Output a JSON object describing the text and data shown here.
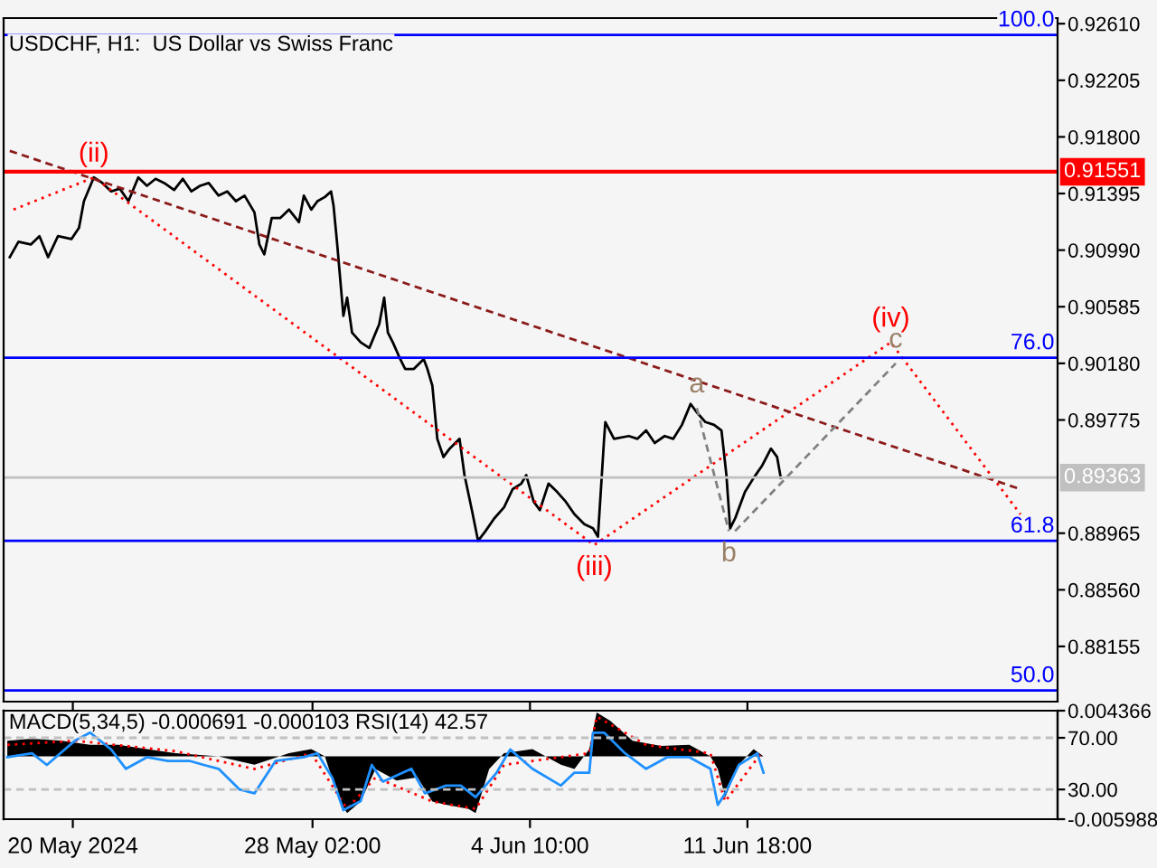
{
  "chart_data": [
    {
      "type": "line",
      "title": "USDCHF, H1:  US Dollar vs Swiss Franc",
      "xlim": [
        "2024-05-17T16:00",
        "2024-06-22T05:00"
      ],
      "xticks": [
        {
          "value": "2024-05-20",
          "label": null
        },
        {
          "value": "2024-05-28T02:00",
          "label": null
        },
        {
          "value": "2024-06-04T10:00",
          "label": null
        },
        {
          "value": "2024-06-11T18:00",
          "label": null
        }
      ],
      "ylim": [
        0.8776,
        0.9265
      ],
      "yticks": [
        {
          "value": 0.9261,
          "label": "0.92610"
        },
        {
          "value": 0.92205,
          "label": "0.92205"
        },
        {
          "value": 0.918,
          "label": "0.91800"
        },
        {
          "value": 0.91395,
          "label": "0.91395"
        },
        {
          "value": 0.9099,
          "label": "0.90990"
        },
        {
          "value": 0.90585,
          "label": "0.90585"
        },
        {
          "value": 0.9018,
          "label": "0.90180"
        },
        {
          "value": 0.89775,
          "label": "0.89775"
        },
        {
          "value": 0.88965,
          "label": "0.88965"
        },
        {
          "value": 0.8856,
          "label": "0.88560"
        },
        {
          "value": 0.88155,
          "label": "0.88155"
        }
      ],
      "tick_labels": "y",
      "grid": false,
      "series": [
        {
          "color": "#000000",
          "line_style": "solid",
          "x": [
            "2024-05-17T21:00",
            "2024-05-18T04:00",
            "2024-05-18T14:00",
            "2024-05-18T21:00",
            "2024-05-19T04:00",
            "2024-05-19T12:00",
            "2024-05-19T23:00",
            "2024-05-20T05:00",
            "2024-05-20T09:00",
            "2024-05-20T17:00",
            "2024-05-21T00:00",
            "2024-05-21T07:00",
            "2024-05-21T14:00",
            "2024-05-21T21:00",
            "2024-05-22T05:00",
            "2024-05-22T12:00",
            "2024-05-22T19:00",
            "2024-05-23T02:00",
            "2024-05-23T10:00",
            "2024-05-23T17:00",
            "2024-05-24T00:00",
            "2024-05-24T07:00",
            "2024-05-24T14:00",
            "2024-05-24T22:00",
            "2024-05-25T05:00",
            "2024-05-25T12:00",
            "2024-05-25T19:00",
            "2024-05-26T03:00",
            "2024-05-26T07:00",
            "2024-05-26T11:00",
            "2024-05-26T17:00",
            "2024-05-27T00:00",
            "2024-05-27T07:00",
            "2024-05-27T15:00",
            "2024-05-27T19:00",
            "2024-05-28T01:00",
            "2024-05-28T06:00",
            "2024-05-28T12:00",
            "2024-05-28T17:00",
            "2024-05-28T19:00",
            "2024-05-28T22:00",
            "2024-05-29T03:00",
            "2024-05-29T06:00",
            "2024-05-29T10:00",
            "2024-05-29T17:00",
            "2024-05-30T00:00",
            "2024-05-30T08:00",
            "2024-05-30T12:00",
            "2024-05-30T15:00",
            "2024-05-30T19:00",
            "2024-05-31T01:00",
            "2024-05-31T05:00",
            "2024-05-31T12:00",
            "2024-05-31T20:00",
            "2024-05-31T23:00",
            "2024-06-01T03:00",
            "2024-06-01T07:00",
            "2024-06-01T12:00",
            "2024-06-01T17:00",
            "2024-06-02T01:00",
            "2024-06-02T05:00",
            "2024-06-02T11:00",
            "2024-06-02T16:00",
            "2024-06-02T22:00",
            "2024-06-03T05:00",
            "2024-06-03T13:00",
            "2024-06-03T20:00",
            "2024-06-04T03:00",
            "2024-06-04T07:00",
            "2024-06-04T13:00",
            "2024-06-04T18:00",
            "2024-06-05T01:00",
            "2024-06-05T08:00",
            "2024-06-05T15:00",
            "2024-06-05T22:00",
            "2024-06-06T06:00",
            "2024-06-06T13:00",
            "2024-06-06T17:00",
            "2024-06-06T22:00",
            "2024-06-06T23:00",
            "2024-06-07T06:00",
            "2024-06-07T18:00",
            "2024-06-08T01:00",
            "2024-06-08T08:00",
            "2024-06-08T15:00",
            "2024-06-08T23:00",
            "2024-06-09T06:00",
            "2024-06-09T13:00",
            "2024-06-09T20:00",
            "2024-06-10T01:00",
            "2024-06-10T08:00",
            "2024-06-10T15:00",
            "2024-06-10T21:00",
            "2024-06-11T01:00",
            "2024-06-11T04:00",
            "2024-06-11T08:00",
            "2024-06-11T16:00",
            "2024-06-11T23:00",
            "2024-06-12T06:00",
            "2024-06-12T13:00",
            "2024-06-12T18:00",
            "2024-06-12T21:00"
          ],
          "values": [
            0.9094,
            0.9105,
            0.9103,
            0.9109,
            0.9094,
            0.9109,
            0.9107,
            0.9115,
            0.9134,
            0.9151,
            0.9147,
            0.9141,
            0.9143,
            0.9134,
            0.9151,
            0.9145,
            0.915,
            0.9147,
            0.9142,
            0.915,
            0.9141,
            0.9145,
            0.9147,
            0.9138,
            0.9141,
            0.9134,
            0.9138,
            0.9126,
            0.9103,
            0.9096,
            0.9122,
            0.9122,
            0.9128,
            0.9119,
            0.9138,
            0.9128,
            0.9134,
            0.9137,
            0.9141,
            0.9131,
            0.9103,
            0.9052,
            0.9065,
            0.904,
            0.9033,
            0.9029,
            0.9046,
            0.9065,
            0.904,
            0.9033,
            0.9021,
            0.9014,
            0.9014,
            0.9021,
            0.9014,
            0.9002,
            0.8964,
            0.8951,
            0.8957,
            0.8964,
            0.8938,
            0.8913,
            0.8891,
            0.8898,
            0.8907,
            0.8915,
            0.8928,
            0.8932,
            0.8938,
            0.8919,
            0.8913,
            0.8932,
            0.8926,
            0.8919,
            0.891,
            0.8903,
            0.89,
            0.8894,
            0.8964,
            0.8976,
            0.8964,
            0.8966,
            0.8964,
            0.897,
            0.8961,
            0.8966,
            0.8964,
            0.8974,
            0.8989,
            0.8983,
            0.8976,
            0.8974,
            0.897,
            0.8938,
            0.89,
            0.8907,
            0.8926,
            0.8936,
            0.8945,
            0.8957,
            0.8951,
            0.8936
          ]
        },
        {
          "color": "#ff0000",
          "line_style": "dotted",
          "x": [
            "2024-05-18T00:00",
            "2024-05-20T17:00",
            "2024-06-06T14:00",
            "2024-06-16T14:00",
            "2024-06-20T23:00"
          ],
          "values": [
            0.9128,
            0.9151,
            0.8888,
            0.9033,
            0.891
          ]
        },
        {
          "color": "#8b1a1a",
          "line_style": "dashed",
          "x": [
            "2024-05-17T21:00",
            "2024-06-20T23:00"
          ],
          "values": [
            0.917,
            0.8928
          ]
        },
        {
          "color": "#808080",
          "line_style": "dashed",
          "x": [
            "2024-06-10T01:00",
            "2024-06-11T03:00"
          ],
          "values": [
            0.8986,
            0.8898
          ]
        },
        {
          "color": "#808080",
          "line_style": "dashed",
          "x": [
            "2024-06-11T08:00",
            "2024-06-16T18:00"
          ],
          "values": [
            0.8898,
            0.9018
          ]
        }
      ],
      "ref_lines": [
        {
          "axis": "y",
          "value": 0.91551,
          "label": "0.91551",
          "color": "#ff0000"
        },
        {
          "axis": "y",
          "value": 0.89363,
          "label": "0.89363",
          "color": "#c0c0c0"
        },
        {
          "axis": "y",
          "value": 0.9253,
          "color": "#0000ff"
        },
        {
          "axis": "y",
          "value": 0.9022,
          "color": "#0000ff"
        },
        {
          "axis": "y",
          "value": 0.8891,
          "color": "#0000ff"
        },
        {
          "axis": "y",
          "value": 0.8784,
          "color": "#0000ff"
        }
      ],
      "annotations": [
        {
          "text": "(ii)",
          "x": "2024-05-20T17:00",
          "y": 0.9151
        },
        {
          "text": "(iii)",
          "x": "2024-06-06T14:00",
          "y": 0.8888
        },
        {
          "text": "(iv)",
          "x": "2024-06-16T14:00",
          "y": 0.9033
        },
        {
          "text": "a",
          "x": "2024-06-10T01:00",
          "y": 0.8986
        },
        {
          "text": "b",
          "x": "2024-06-11T03:00",
          "y": 0.8898
        },
        {
          "text": "c",
          "x": "2024-06-16T18:00",
          "y": 0.9018
        },
        "100.0",
        "76.0",
        "61.8",
        "50.0"
      ]
    },
    {
      "type": "area",
      "title": "MACD(5,34,5) -0.000691 -0.000103 RSI(14) 42.57",
      "xlim": [
        "2024-05-17T16:00",
        "2024-06-22T05:00"
      ],
      "xticks": [
        {
          "value": "2024-05-20",
          "label": "20 May 2024"
        },
        {
          "value": "2024-05-28T02:00",
          "label": "28 May 02:00"
        },
        {
          "value": "2024-06-04T10:00",
          "label": "4 Jun 10:00"
        },
        {
          "value": "2024-06-11T18:00",
          "label": "11 Jun 18:00"
        }
      ],
      "ylim": [
        -0.005988,
        0.004366
      ],
      "yticks": [
        0.004366,
        -0.005988
      ],
      "y2lim": [
        7,
        91
      ],
      "y2ticks": [
        {
          "value": 70,
          "label": "70.00"
        },
        {
          "value": 30,
          "label": "30.00"
        }
      ],
      "grid": false,
      "series": [
        {
          "type": "area",
          "color": "#000000",
          "x": [
            "2024-05-17T19:00",
            "2024-05-18T15:00",
            "2024-05-19T15:00",
            "2024-05-20T14:00",
            "2024-05-21T13:00",
            "2024-05-22T12:00",
            "2024-05-23T11:00",
            "2024-05-24T22:00",
            "2024-05-26T03:00",
            "2024-05-27T07:00",
            "2024-05-28T01:00",
            "2024-05-28T12:00",
            "2024-05-29T00:00",
            "2024-05-29T06:00",
            "2024-05-29T17:00",
            "2024-05-30T05:00",
            "2024-05-30T22:00",
            "2024-05-31T15:00",
            "2024-06-01T03:00",
            "2024-06-01T14:00",
            "2024-06-02T08:00",
            "2024-06-02T14:00",
            "2024-06-03T01:00",
            "2024-06-03T13:00",
            "2024-06-04T12:00",
            "2024-06-05T11:00",
            "2024-06-05T22:00",
            "2024-06-06T10:00",
            "2024-06-06T16:00",
            "2024-06-07T03:00",
            "2024-06-07T21:00",
            "2024-06-08T20:00",
            "2024-06-09T19:00",
            "2024-06-10T12:00",
            "2024-06-10T18:00",
            "2024-06-11T00:00",
            "2024-06-11T11:00",
            "2024-06-11T23:00",
            "2024-06-12T07:00"
          ],
          "values": [
            0.0015,
            0.0017,
            0.0015,
            0.0011,
            0.0011,
            0.0007,
            0.0003,
            0.0,
            -0.0008,
            0.0003,
            0.0007,
            0.0,
            -0.0043,
            -0.0054,
            -0.0043,
            -0.0012,
            -0.0023,
            -0.002,
            -0.0043,
            -0.0046,
            -0.005,
            -0.0054,
            -0.0012,
            0.0003,
            0.0007,
            -0.0008,
            -0.0012,
            0.0007,
            0.0042,
            0.0034,
            0.0015,
            0.001,
            0.0011,
            0.0,
            -0.0012,
            -0.0039,
            -0.0008,
            0.0007,
            0.0
          ]
        },
        {
          "type": "line",
          "color": "#ff0000",
          "line_style": "dotted",
          "x": [
            "2024-05-17T19:00",
            "2024-05-20T02:00",
            "2024-05-23T11:00",
            "2024-05-26T03:00",
            "2024-05-28T01:00",
            "2024-05-29T06:00",
            "2024-05-30T05:00",
            "2024-06-01T03:00",
            "2024-06-02T14:00",
            "2024-06-03T13:00",
            "2024-06-06T10:00",
            "2024-06-06T16:00",
            "2024-06-08T08:00",
            "2024-06-10T12:00",
            "2024-06-11T00:00",
            "2024-06-12T05:00"
          ],
          "values": [
            0.0011,
            0.0015,
            0.0005,
            -0.0012,
            0.0003,
            -0.005,
            -0.002,
            -0.0043,
            -0.005,
            -0.0008,
            0.0003,
            0.0038,
            0.0011,
            0.0003,
            -0.0043,
            0.0003
          ]
        },
        {
          "type": "line",
          "axis": "y2",
          "color": "#1e90ff",
          "line_style": "solid",
          "x": [
            "2024-05-17T19:00",
            "2024-05-18T15:00",
            "2024-05-19T03:00",
            "2024-05-20T02:00",
            "2024-05-20T14:00",
            "2024-05-21T07:00",
            "2024-05-21T19:00",
            "2024-05-22T12:00",
            "2024-05-23T05:00",
            "2024-05-23T23:00",
            "2024-05-24T10:00",
            "2024-05-24T22:00",
            "2024-05-25T15:00",
            "2024-05-26T03:00",
            "2024-05-26T20:00",
            "2024-05-27T19:00",
            "2024-05-28T06:00",
            "2024-05-28T18:00",
            "2024-05-29T03:00",
            "2024-05-29T17:00",
            "2024-05-30T02:00",
            "2024-05-30T11:00",
            "2024-05-31T10:00",
            "2024-05-31T21:00",
            "2024-06-01T14:00",
            "2024-06-02T02:00",
            "2024-06-02T14:00",
            "2024-06-03T07:00",
            "2024-06-03T18:00",
            "2024-06-04T12:00",
            "2024-06-05T11:00",
            "2024-06-05T22:00",
            "2024-06-06T10:00",
            "2024-06-06T13:00",
            "2024-06-06T22:00",
            "2024-06-07T15:00",
            "2024-06-08T08:00",
            "2024-06-09T01:00",
            "2024-06-09T19:00",
            "2024-06-10T12:00",
            "2024-06-10T18:00",
            "2024-06-11T00:00",
            "2024-06-11T11:00",
            "2024-06-12T02:00",
            "2024-06-12T07:00"
          ],
          "values": [
            55,
            58,
            49,
            68,
            74,
            61,
            46,
            55,
            52,
            52,
            49,
            46,
            30,
            27,
            52,
            55,
            58,
            39,
            14,
            21,
            49,
            36,
            46,
            27,
            33,
            33,
            24,
            43,
            61,
            46,
            33,
            43,
            43,
            74,
            74,
            58,
            46,
            55,
            55,
            46,
            18,
            27,
            49,
            58,
            43
          ]
        }
      ],
      "ref_lines": [
        {
          "axis": "y2",
          "value": 70,
          "color": "#c0c0c0",
          "line_style": "dashed"
        },
        {
          "axis": "y2",
          "value": 30,
          "color": "#c0c0c0",
          "line_style": "dashed"
        }
      ]
    }
  ]
}
